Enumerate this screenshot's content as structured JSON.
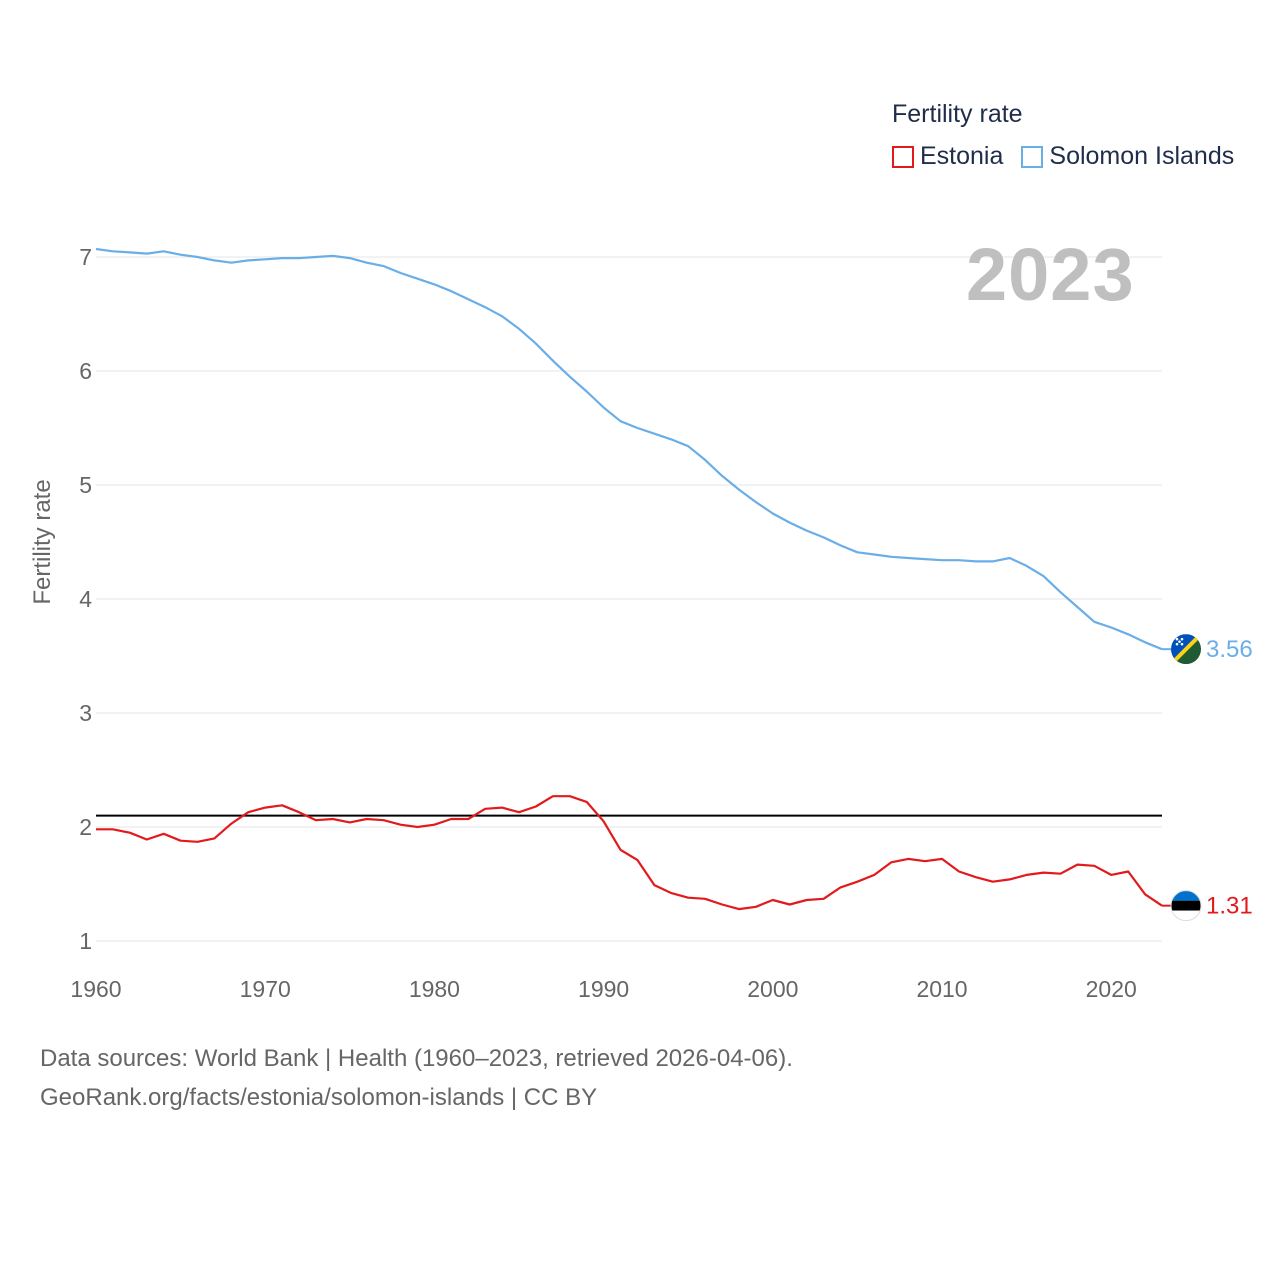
{
  "legend": {
    "title": "Fertility rate",
    "items": [
      {
        "label": "Estonia",
        "color": "#e31a1c"
      },
      {
        "label": "Solomon Islands",
        "color": "#6aaee8"
      }
    ]
  },
  "year_label": "2023",
  "footer": {
    "line1": "Data sources: World Bank | Health (1960–2023, retrieved 2026-04-06).",
    "line2": "GeoRank.org/facts/estonia/solomon-islands | CC BY"
  },
  "flags": [
    {
      "country": "Solomon Islands",
      "icon": "solomon-islands-flag-icon"
    },
    {
      "country": "Estonia",
      "icon": "estonia-flag-icon"
    }
  ],
  "chart_data": {
    "type": "line",
    "title": "Fertility rate",
    "xlabel": "",
    "ylabel": "Fertility rate",
    "xlim": [
      1960,
      2023
    ],
    "ylim": [
      1,
      7.1
    ],
    "xticks": [
      1960,
      1970,
      1980,
      1990,
      2000,
      2010,
      2020
    ],
    "yticks": [
      1,
      2,
      3,
      4,
      5,
      6,
      7
    ],
    "grid": true,
    "reference_line": 2.1,
    "x_start": 1960,
    "x_end": 2023,
    "series": [
      {
        "name": "Estonia",
        "color": "#e31a1c",
        "end_label": "1.31",
        "values": [
          1.98,
          1.98,
          1.95,
          1.89,
          1.94,
          1.88,
          1.87,
          1.9,
          2.03,
          2.13,
          2.17,
          2.19,
          2.13,
          2.06,
          2.07,
          2.04,
          2.07,
          2.06,
          2.02,
          2.0,
          2.02,
          2.07,
          2.07,
          2.16,
          2.17,
          2.13,
          2.18,
          2.27,
          2.27,
          2.22,
          2.05,
          1.8,
          1.71,
          1.49,
          1.42,
          1.38,
          1.37,
          1.32,
          1.28,
          1.3,
          1.36,
          1.32,
          1.36,
          1.37,
          1.47,
          1.52,
          1.58,
          1.69,
          1.72,
          1.7,
          1.72,
          1.61,
          1.56,
          1.52,
          1.54,
          1.58,
          1.6,
          1.59,
          1.67,
          1.66,
          1.58,
          1.61,
          1.41,
          1.31
        ]
      },
      {
        "name": "Solomon Islands",
        "color": "#6aaee8",
        "end_label": "3.56",
        "values": [
          7.07,
          7.05,
          7.04,
          7.03,
          7.05,
          7.02,
          7.0,
          6.97,
          6.95,
          6.97,
          6.98,
          6.99,
          6.99,
          7.0,
          7.01,
          6.99,
          6.95,
          6.92,
          6.86,
          6.81,
          6.76,
          6.7,
          6.63,
          6.56,
          6.48,
          6.37,
          6.24,
          6.09,
          5.95,
          5.82,
          5.68,
          5.56,
          5.5,
          5.45,
          5.4,
          5.34,
          5.22,
          5.08,
          4.96,
          4.85,
          4.75,
          4.67,
          4.6,
          4.54,
          4.47,
          4.41,
          4.39,
          4.37,
          4.36,
          4.35,
          4.34,
          4.34,
          4.33,
          4.33,
          4.36,
          4.29,
          4.2,
          4.06,
          3.93,
          3.8,
          3.75,
          3.69,
          3.62,
          3.56
        ]
      }
    ]
  }
}
